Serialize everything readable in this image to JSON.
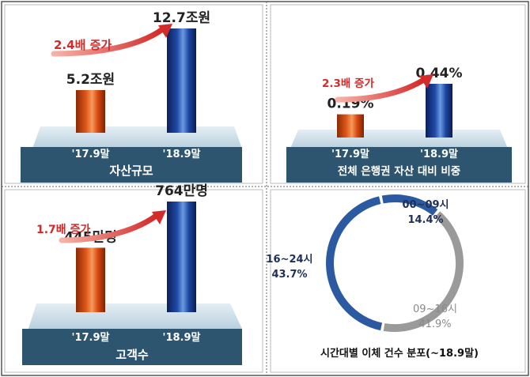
{
  "chart_data": [
    {
      "type": "bar",
      "categories": [
        "'17.9말",
        "'18.9말"
      ],
      "values": [
        5.2,
        12.7
      ],
      "value_labels": [
        "5.2조원",
        "12.7조원"
      ],
      "unit": "조원",
      "annotation": "2.4배 증가",
      "title": "자산규모"
    },
    {
      "type": "bar",
      "categories": [
        "'17.9말",
        "'18.9말"
      ],
      "values": [
        0.19,
        0.44
      ],
      "value_labels": [
        "0.19%",
        "0.44%"
      ],
      "unit": "%",
      "annotation": "2.3배 증가",
      "title": "전체 은행권 자산 대비 비중"
    },
    {
      "type": "bar",
      "categories": [
        "'17.9말",
        "'18.9말"
      ],
      "values": [
        445,
        764
      ],
      "value_labels": [
        "445만명",
        "764만명"
      ],
      "unit": "만명",
      "annotation": "1.7배 증가",
      "title": "고객수"
    },
    {
      "type": "pie",
      "style": "donut",
      "slices": [
        {
          "label": "00~09시",
          "value": 14.4,
          "value_label": "14.4%",
          "color": "#2c5aa0"
        },
        {
          "label": "09~16시",
          "value": 41.9,
          "value_label": "41.9%",
          "color": "#9a9a9a"
        },
        {
          "label": "16~24시",
          "value": 43.7,
          "value_label": "43.7%",
          "color": "#2c5aa0"
        }
      ],
      "title": "시간대별 이체 건수 분포(~18.9말)"
    }
  ],
  "colors": {
    "bar_old": "#d04a12",
    "bar_new": "#1b3d8f",
    "arrow": "#d42a2a",
    "annotation": "#d42a2a",
    "label_dark": "#1f2f5c",
    "label_gray": "#8a8a8a",
    "band": "#2e5570",
    "platform": "#c7dbe7"
  }
}
